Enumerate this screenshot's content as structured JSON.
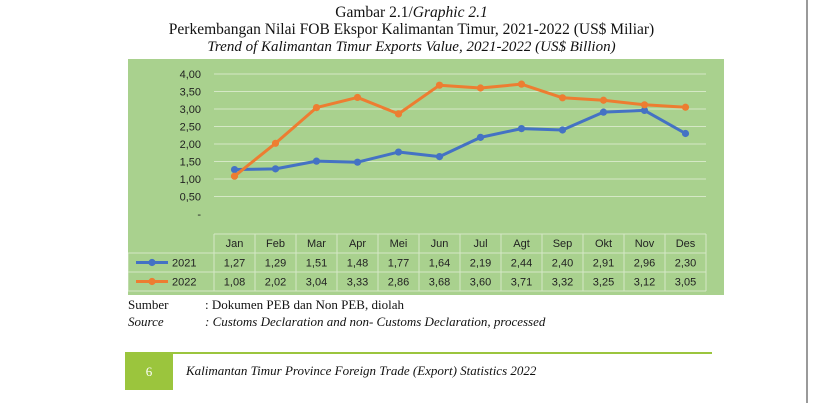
{
  "heading": {
    "graphic_label_prefix": "Gambar 2.1/",
    "graphic_label_italic": "Graphic 2.1",
    "title_id": "Perkembangan Nilai FOB Ekspor Kalimantan Timur, 2021-2022 (US$ Miliar)",
    "title_en": "Trend of Kalimantan Timur Exports Value, 2021-2022 (US$ Billion)"
  },
  "chart_data": {
    "type": "line",
    "categories": [
      "Jan",
      "Feb",
      "Mar",
      "Apr",
      "Mei",
      "Jun",
      "Jul",
      "Agt",
      "Sep",
      "Okt",
      "Nov",
      "Des"
    ],
    "series": [
      {
        "name": "2021",
        "color": "#4472c4",
        "values": [
          1.27,
          1.29,
          1.51,
          1.48,
          1.77,
          1.64,
          2.19,
          2.44,
          2.4,
          2.91,
          2.96,
          2.3
        ],
        "labels": [
          "1,27",
          "1,29",
          "1,51",
          "1,48",
          "1,77",
          "1,64",
          "2,19",
          "2,44",
          "2,40",
          "2,91",
          "2,96",
          "2,30"
        ]
      },
      {
        "name": "2022",
        "color": "#ed7d31",
        "values": [
          1.08,
          2.02,
          3.04,
          3.33,
          2.86,
          3.68,
          3.6,
          3.71,
          3.32,
          3.25,
          3.12,
          3.05
        ],
        "labels": [
          "1,08",
          "2,02",
          "3,04",
          "3,33",
          "2,86",
          "3,68",
          "3,60",
          "3,71",
          "3,32",
          "3,25",
          "3,12",
          "3,05"
        ]
      }
    ],
    "y_ticks": [
      "-",
      "0,50",
      "1,00",
      "1,50",
      "2,00",
      "2,50",
      "3,00",
      "3,50",
      "4,00"
    ],
    "ylim": [
      0,
      4
    ],
    "grid": true,
    "data_table": true,
    "plot_background": "#a9d18e"
  },
  "source": {
    "label_id": "Sumber",
    "text_id": ": Dokumen PEB dan Non PEB, diolah",
    "label_en": "Source",
    "text_en": ": Customs Declaration and non- Customs Declaration, processed"
  },
  "footer": {
    "page_number": "6",
    "text": "Kalimantan Timur Province Foreign Trade (Export) Statistics 2022",
    "accent": "#9bc53d"
  }
}
